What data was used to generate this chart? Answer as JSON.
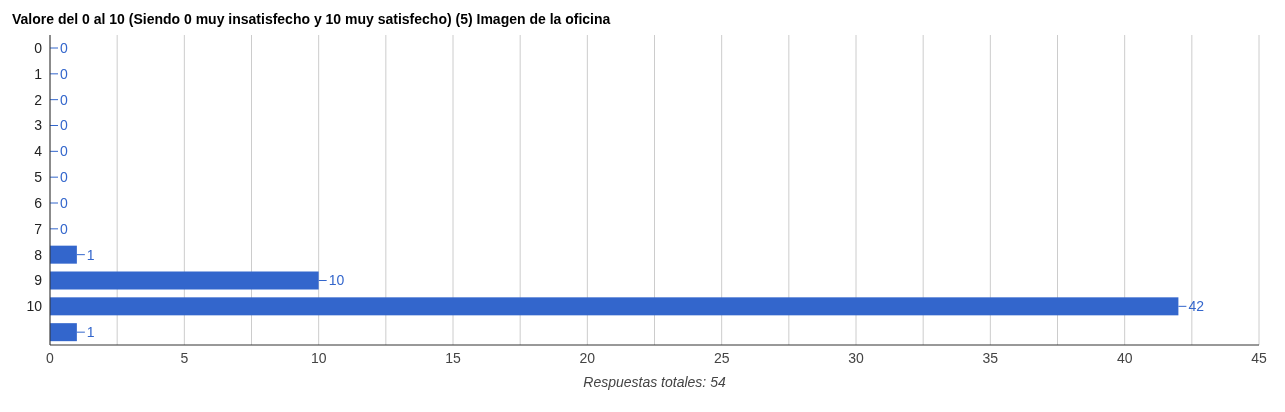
{
  "chart_data": {
    "type": "bar",
    "orientation": "horizontal",
    "title": "Valore del 0 al 10 (Siendo 0 muy insatisfecho y 10 muy satisfecho) (5) Imagen de la oficina",
    "xlabel": "Respuestas totales: 54",
    "categories": [
      "0",
      "1",
      "2",
      "3",
      "4",
      "5",
      "6",
      "7",
      "8",
      "9",
      "10",
      null
    ],
    "values": [
      0,
      0,
      0,
      0,
      0,
      0,
      0,
      0,
      1,
      10,
      42,
      1
    ],
    "color": "#3366cc",
    "xlim": [
      0,
      45
    ],
    "xticks": [
      0,
      {
        "value": 2.5,
        "label": null
      },
      5,
      {
        "value": 7.5,
        "label": null
      },
      10,
      {
        "value": 12.5,
        "label": null
      },
      15,
      {
        "value": 17.5,
        "label": null
      },
      20,
      {
        "value": 22.5,
        "label": null
      },
      25,
      {
        "value": 27.5,
        "label": null
      },
      30,
      {
        "value": 32.5,
        "label": null
      },
      35,
      {
        "value": 37.5,
        "label": null
      },
      40,
      {
        "value": 42.5,
        "label": null
      },
      45
    ],
    "grid": "x",
    "data_labels": true
  }
}
